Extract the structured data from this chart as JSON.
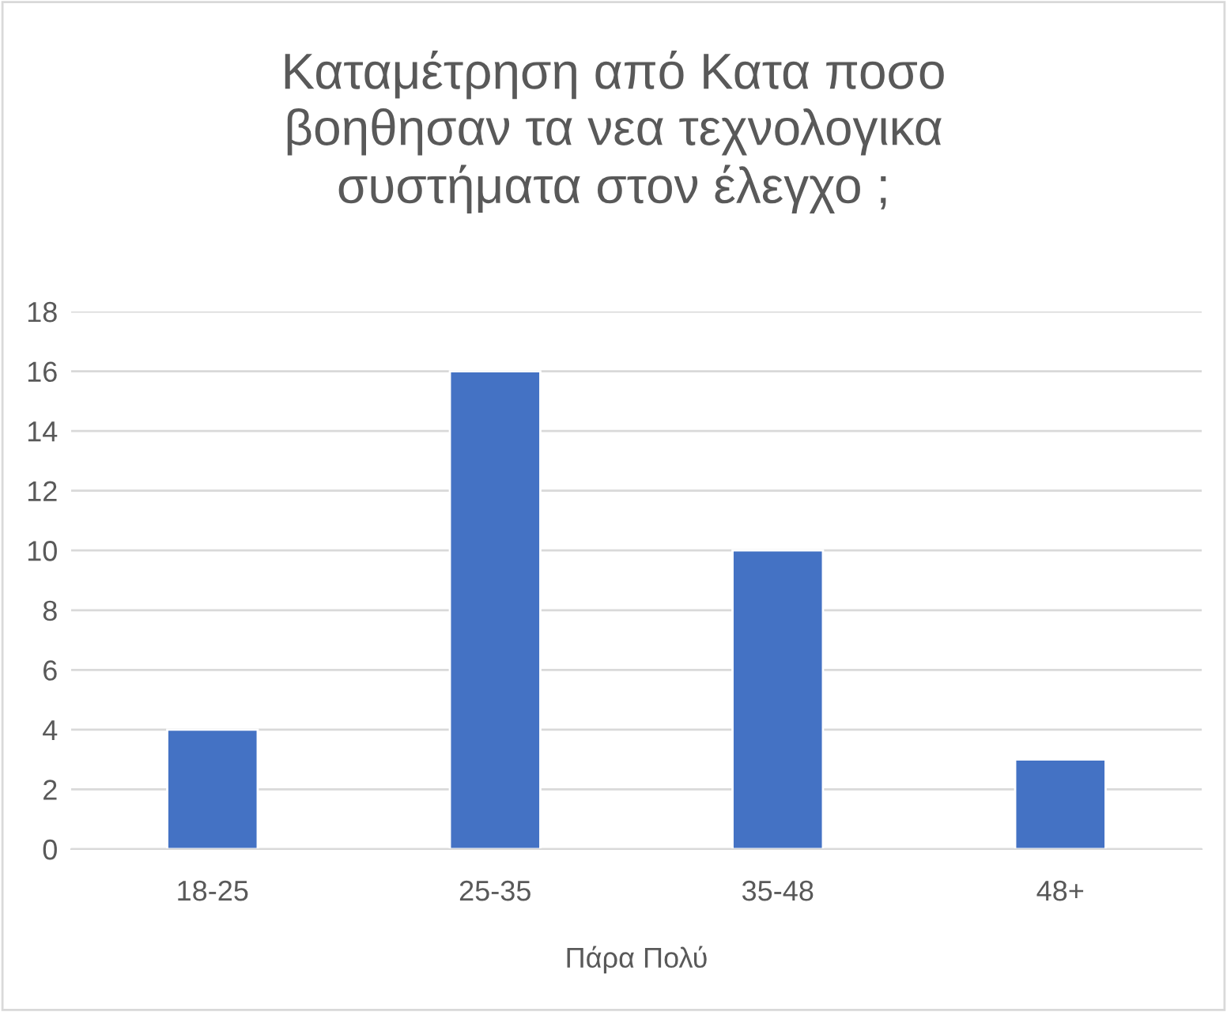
{
  "chart_data": {
    "type": "bar",
    "title": "Καταμέτρηση από Κατα ποσο\nβοηθησαν τα νεα τεχνολογικα\nσυστήματα στον έλεγχο ;",
    "xlabel": "Πάρα Πολύ",
    "categories": [
      "18-25",
      "25-35",
      "35-48",
      "48+"
    ],
    "values": [
      4,
      16,
      10,
      3
    ],
    "color": "#4472c4",
    "ylim": [
      0,
      18
    ],
    "yticks": [
      0,
      2,
      4,
      6,
      8,
      10,
      12,
      14,
      16,
      18
    ],
    "grid": "y",
    "legend": false
  }
}
